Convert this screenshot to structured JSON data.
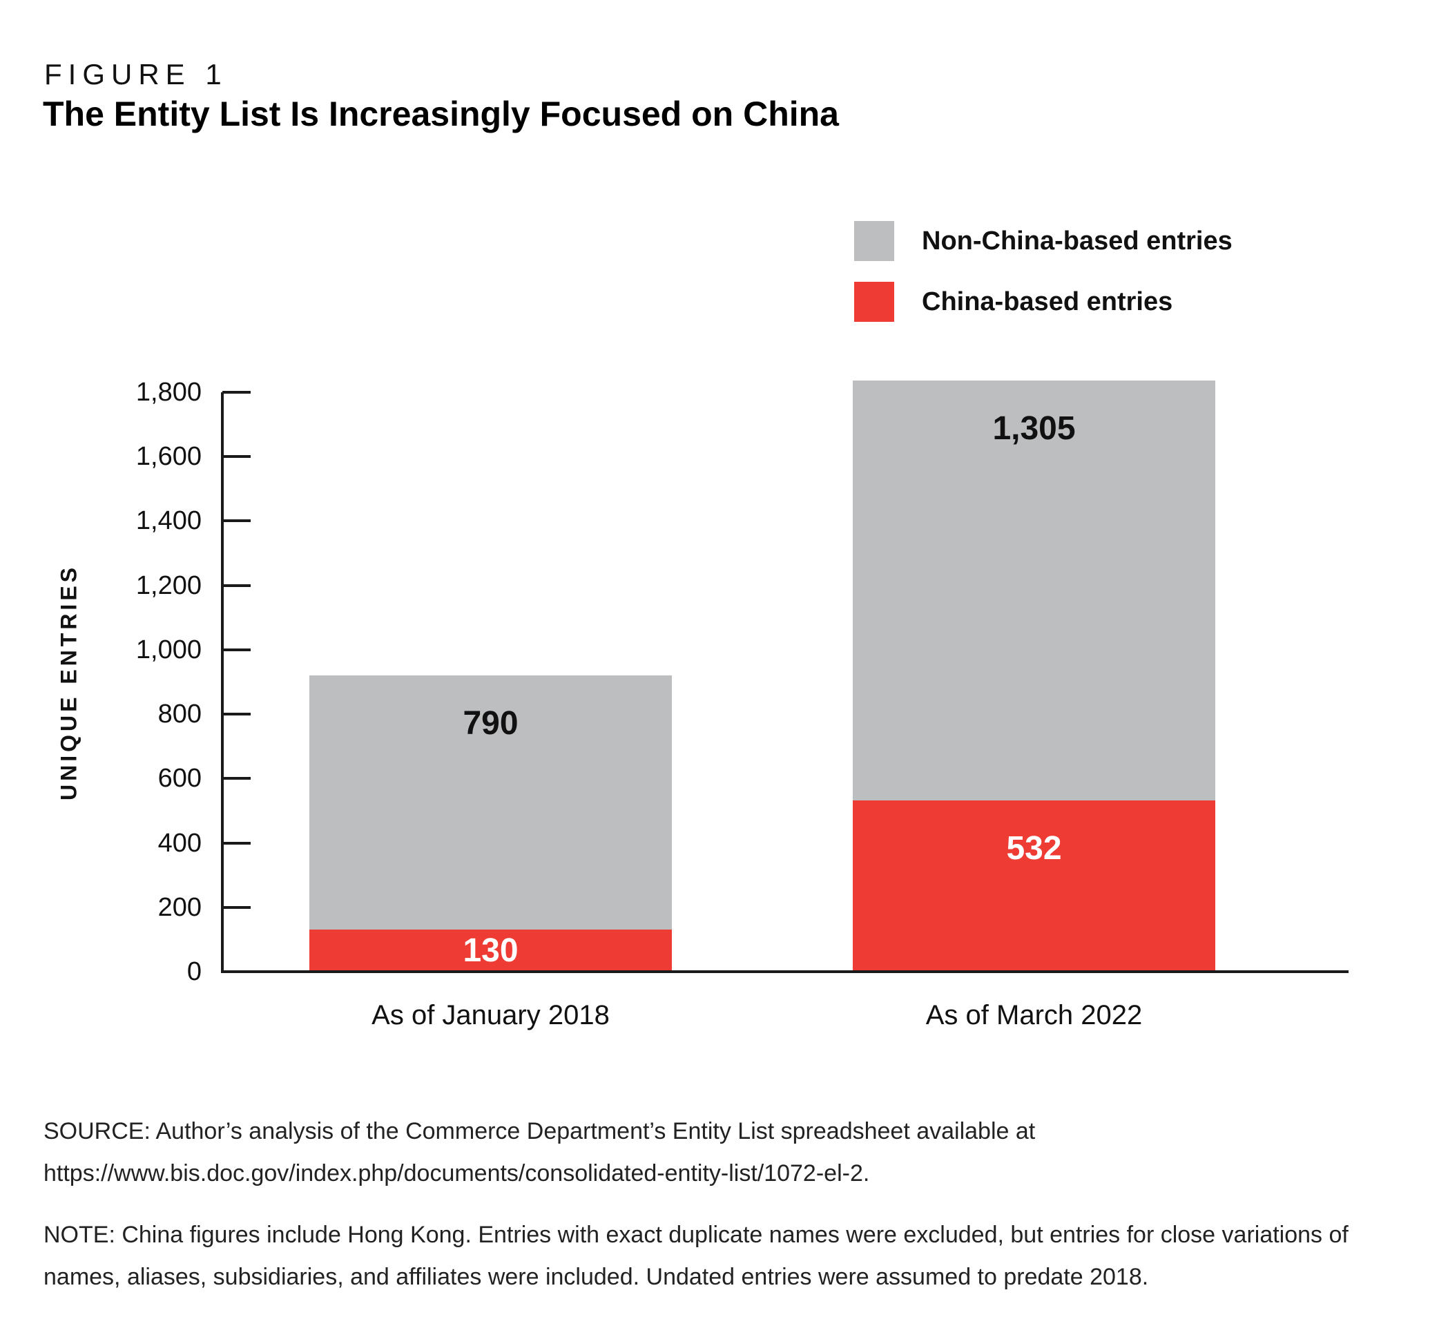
{
  "figure": {
    "kicker": "FIGURE 1",
    "title": "The Entity List Is Increasingly Focused on China"
  },
  "legend": [
    {
      "label": "Non-China-based entries",
      "color": "#BCBEC0"
    },
    {
      "label": "China-based entries",
      "color": "#EE3B33"
    }
  ],
  "chart_data": {
    "type": "bar",
    "stacked": true,
    "categories": [
      "As of January 2018",
      "As of March 2022"
    ],
    "series": [
      {
        "name": "China-based entries",
        "color": "#EE3B33",
        "values": [
          130,
          532
        ],
        "labels": [
          "130",
          "532"
        ],
        "label_color": "#FFFFFF"
      },
      {
        "name": "Non-China-based entries",
        "color": "#BCBEC0",
        "values": [
          790,
          1305
        ],
        "labels": [
          "790",
          "1,305"
        ],
        "label_color": "#111111"
      }
    ],
    "totals": [
      920,
      1837
    ],
    "ylabel": "UNIQUE ENTRIES",
    "ylim": [
      0,
      1800
    ],
    "yticks": [
      {
        "value": 0,
        "label": "0"
      },
      {
        "value": 200,
        "label": "200"
      },
      {
        "value": 400,
        "label": "400"
      },
      {
        "value": 600,
        "label": "600"
      },
      {
        "value": 800,
        "label": "800"
      },
      {
        "value": 1000,
        "label": "1,000"
      },
      {
        "value": 1200,
        "label": "1,200"
      },
      {
        "value": 1400,
        "label": "1,400"
      },
      {
        "value": 1600,
        "label": "1,600"
      },
      {
        "value": 1800,
        "label": "1,800"
      }
    ],
    "grid": false,
    "legend_position": "top-right"
  },
  "source": "SOURCE: Author’s analysis of the Commerce Department’s Entity List spreadsheet available at https://www.bis.doc.gov/index.php/documents/consolidated-entity-list/1072-el-2.",
  "note": "NOTE: China figures include Hong Kong. Entries with exact duplicate names were excluded, but entries for close variations of names, aliases, subsidiaries, and affiliates were included. Undated entries were assumed to predate 2018."
}
